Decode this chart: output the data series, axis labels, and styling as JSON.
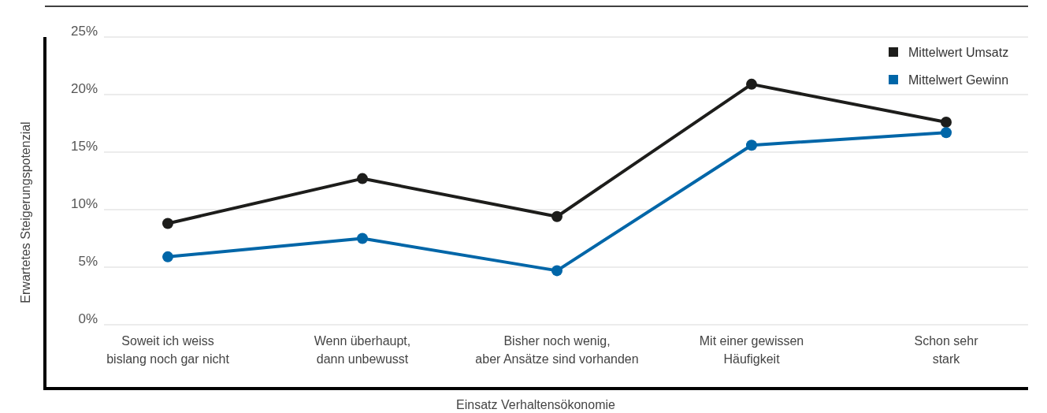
{
  "chart_data": {
    "type": "line",
    "xlabel": "Einsatz Verhaltensökonomie",
    "ylabel": "Erwartetes Steigerungspotenzial",
    "categories": [
      "Soweit ich weiss\nbislang noch gar nicht",
      "Wenn überhaupt,\ndann unbewusst",
      "Bisher noch wenig,\naber Ansätze sind vorhanden",
      "Mit einer gewissen\nHäufigkeit",
      "Schon sehr\nstark"
    ],
    "series": [
      {
        "name": "Mittelwert Umsatz",
        "color": "#1d1d1b",
        "values": [
          8.8,
          12.7,
          9.4,
          20.9,
          17.6
        ]
      },
      {
        "name": "Mittelwert Gewinn",
        "color": "#0066a8",
        "values": [
          5.9,
          7.5,
          4.7,
          15.6,
          16.7
        ]
      }
    ],
    "ylim": [
      0,
      25
    ],
    "yticks": [
      {
        "value": 0,
        "label": "0%"
      },
      {
        "value": 5,
        "label": "5%"
      },
      {
        "value": 10,
        "label": "10%"
      },
      {
        "value": 15,
        "label": "15%"
      },
      {
        "value": 20,
        "label": "20%"
      },
      {
        "value": 25,
        "label": "25%"
      }
    ],
    "grid": "y",
    "legend": "top right",
    "marker": "circle",
    "line_style": "solid"
  }
}
